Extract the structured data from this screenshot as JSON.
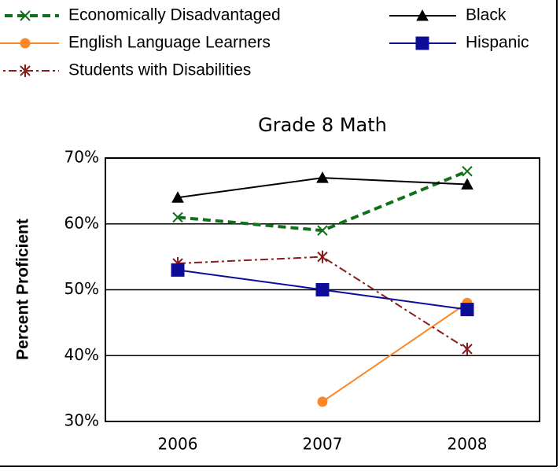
{
  "chart_data": {
    "type": "line",
    "title": "Grade 8 Math",
    "y_label": "Percent Proficient",
    "categories": [
      "2006",
      "2007",
      "2008"
    ],
    "series": [
      {
        "name": "Economically Disadvantaged",
        "color": "#11701a",
        "marker": "x",
        "dash": "dashed",
        "values": [
          61,
          59,
          68
        ]
      },
      {
        "name": "English Language Learners",
        "color": "#ff8624",
        "marker": "circle",
        "dash": "solid",
        "values": [
          null,
          33,
          48
        ]
      },
      {
        "name": "Students with Disabilities",
        "color": "#8b1c1c",
        "marker": "star",
        "dash": "dashdot",
        "values": [
          54,
          55,
          41
        ]
      },
      {
        "name": "Black",
        "color": "#000000",
        "marker": "triangle",
        "dash": "solid",
        "values": [
          64,
          67,
          66
        ]
      },
      {
        "name": "Hispanic",
        "color": "#0d0d99",
        "marker": "square",
        "dash": "solid",
        "values": [
          53,
          50,
          47
        ]
      }
    ],
    "ylim": [
      30,
      70
    ],
    "yticks": [
      {
        "value": 30,
        "label": "30%"
      },
      {
        "value": 40,
        "label": "40%"
      },
      {
        "value": 50,
        "label": "50%"
      },
      {
        "value": 60,
        "label": "60%"
      },
      {
        "value": 70,
        "label": "70%"
      }
    ],
    "grid": true
  }
}
